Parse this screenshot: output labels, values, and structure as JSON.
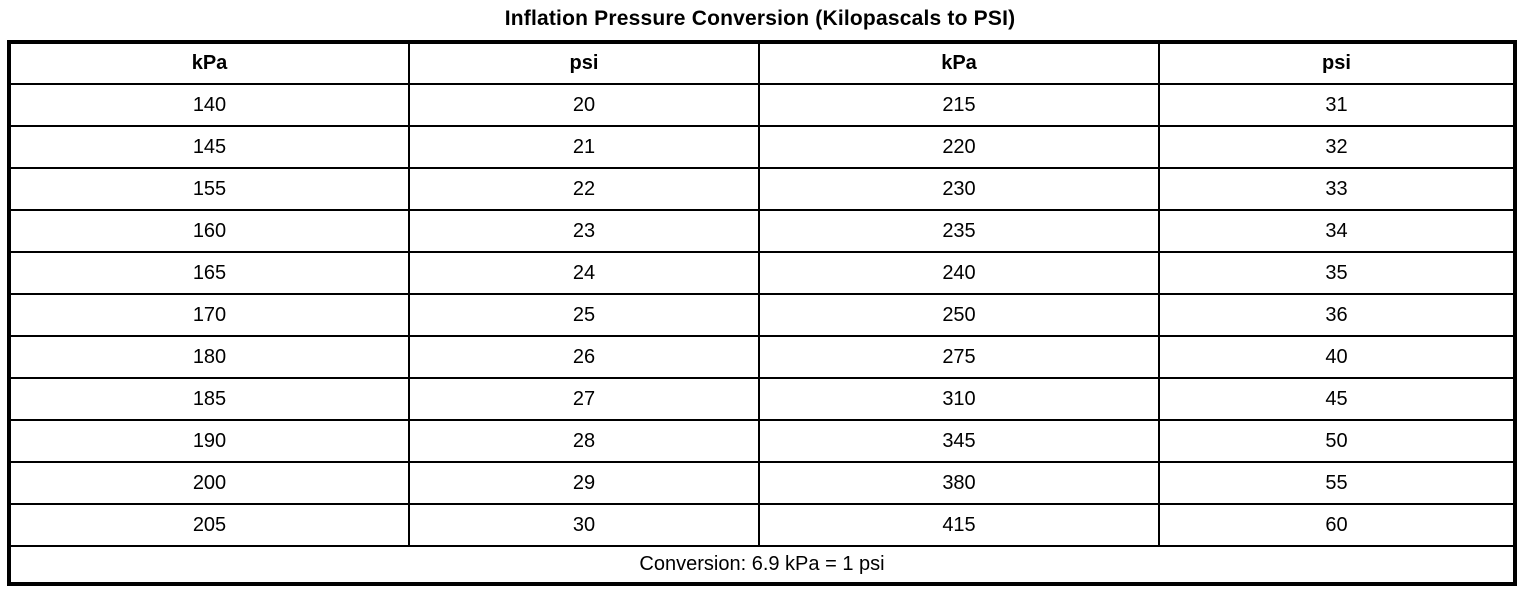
{
  "title": "Inflation Pressure Conversion (Kilopascals to PSI)",
  "table": {
    "headers": [
      "kPa",
      "psi",
      "kPa",
      "psi"
    ],
    "rows": [
      [
        "140",
        "20",
        "215",
        "31"
      ],
      [
        "145",
        "21",
        "220",
        "32"
      ],
      [
        "155",
        "22",
        "230",
        "33"
      ],
      [
        "160",
        "23",
        "235",
        "34"
      ],
      [
        "165",
        "24",
        "240",
        "35"
      ],
      [
        "170",
        "25",
        "250",
        "36"
      ],
      [
        "180",
        "26",
        "275",
        "40"
      ],
      [
        "185",
        "27",
        "310",
        "45"
      ],
      [
        "190",
        "28",
        "345",
        "50"
      ],
      [
        "200",
        "29",
        "380",
        "55"
      ],
      [
        "205",
        "30",
        "415",
        "60"
      ]
    ],
    "footer": "Conversion: 6.9 kPa = 1 psi"
  },
  "colors": {
    "background": "#ffffff",
    "text": "#000000",
    "border": "#000000"
  }
}
